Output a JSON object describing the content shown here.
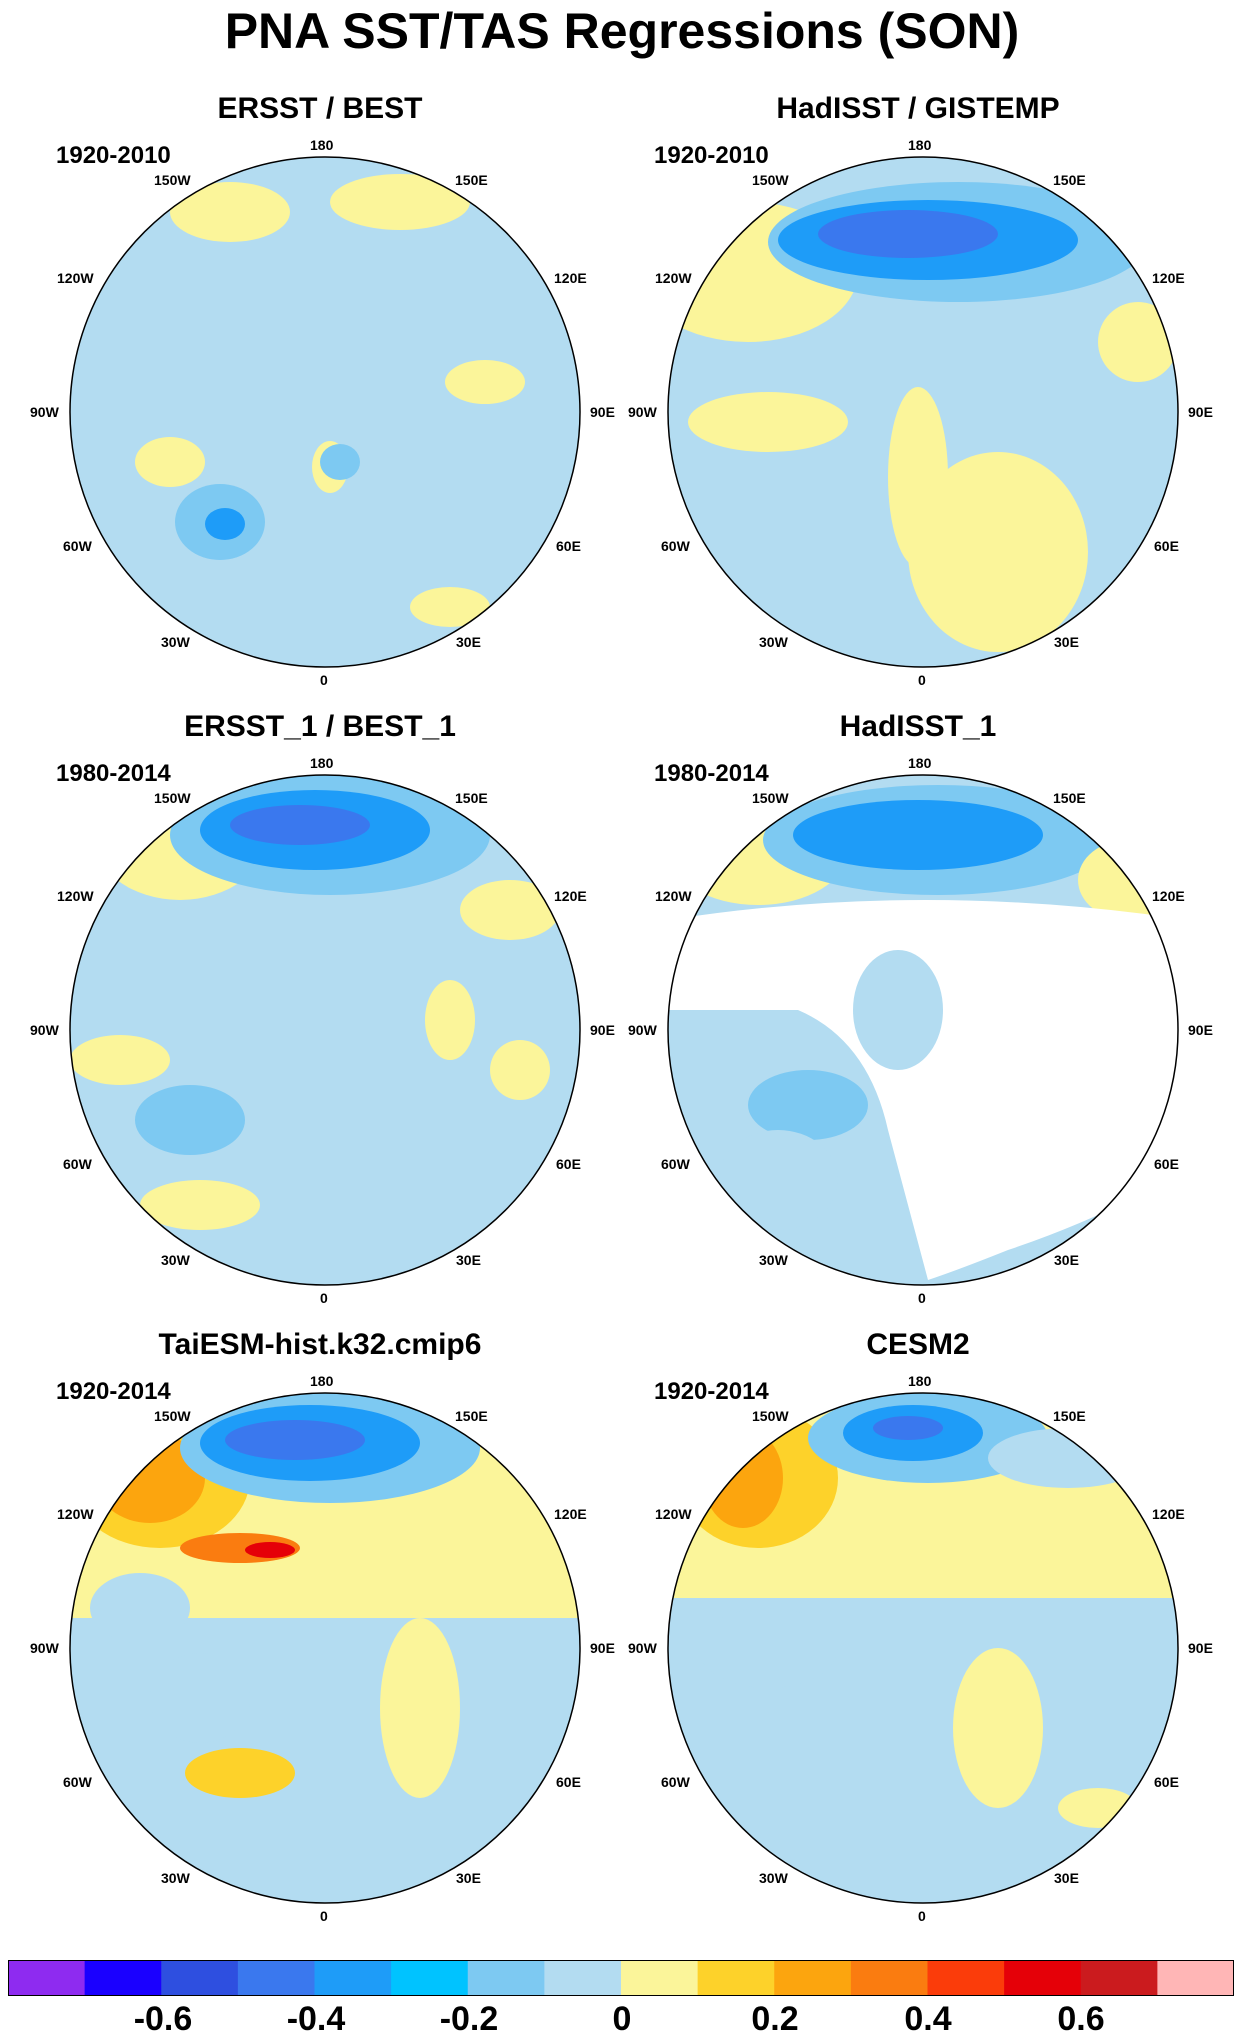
{
  "title": "PNA SST/TAS Regressions (SON)",
  "panels": [
    {
      "title": "ERSST / BEST",
      "period": "1920-2010"
    },
    {
      "title": "HadISST / GISTEMP",
      "period": "1920-2010"
    },
    {
      "title": "ERSST_1 / BEST_1",
      "period": "1980-2014"
    },
    {
      "title": "HadISST_1",
      "period": "1980-2014"
    },
    {
      "title": "TaiESM-hist.k32.cmip6",
      "period": "1920-2014"
    },
    {
      "title": "CESM2",
      "period": "1920-2014"
    }
  ],
  "longitude_labels": {
    "top": "180",
    "upper_left": "150W",
    "upper_right": "150E",
    "left_upper": "120W",
    "right_upper": "120E",
    "left": "90W",
    "right": "90E",
    "left_lower": "60W",
    "right_lower": "60E",
    "lower_left": "30W",
    "lower_right": "30E",
    "bottom": "0"
  },
  "colorbar": {
    "colors": [
      "#8e2bf0",
      "#1a00ff",
      "#2e4fe0",
      "#3a78ee",
      "#1e9cf8",
      "#00c3ff",
      "#7dc9f2",
      "#b3dcf1",
      "#fbf59a",
      "#fdd22a",
      "#fca50e",
      "#fa7c10",
      "#fb3c0a",
      "#e50008",
      "#cb1b1e",
      "#ffb6b6"
    ],
    "labels": [
      "-0.6",
      "-0.4",
      "-0.2",
      "0",
      "0.2",
      "0.4",
      "0.6"
    ]
  }
}
